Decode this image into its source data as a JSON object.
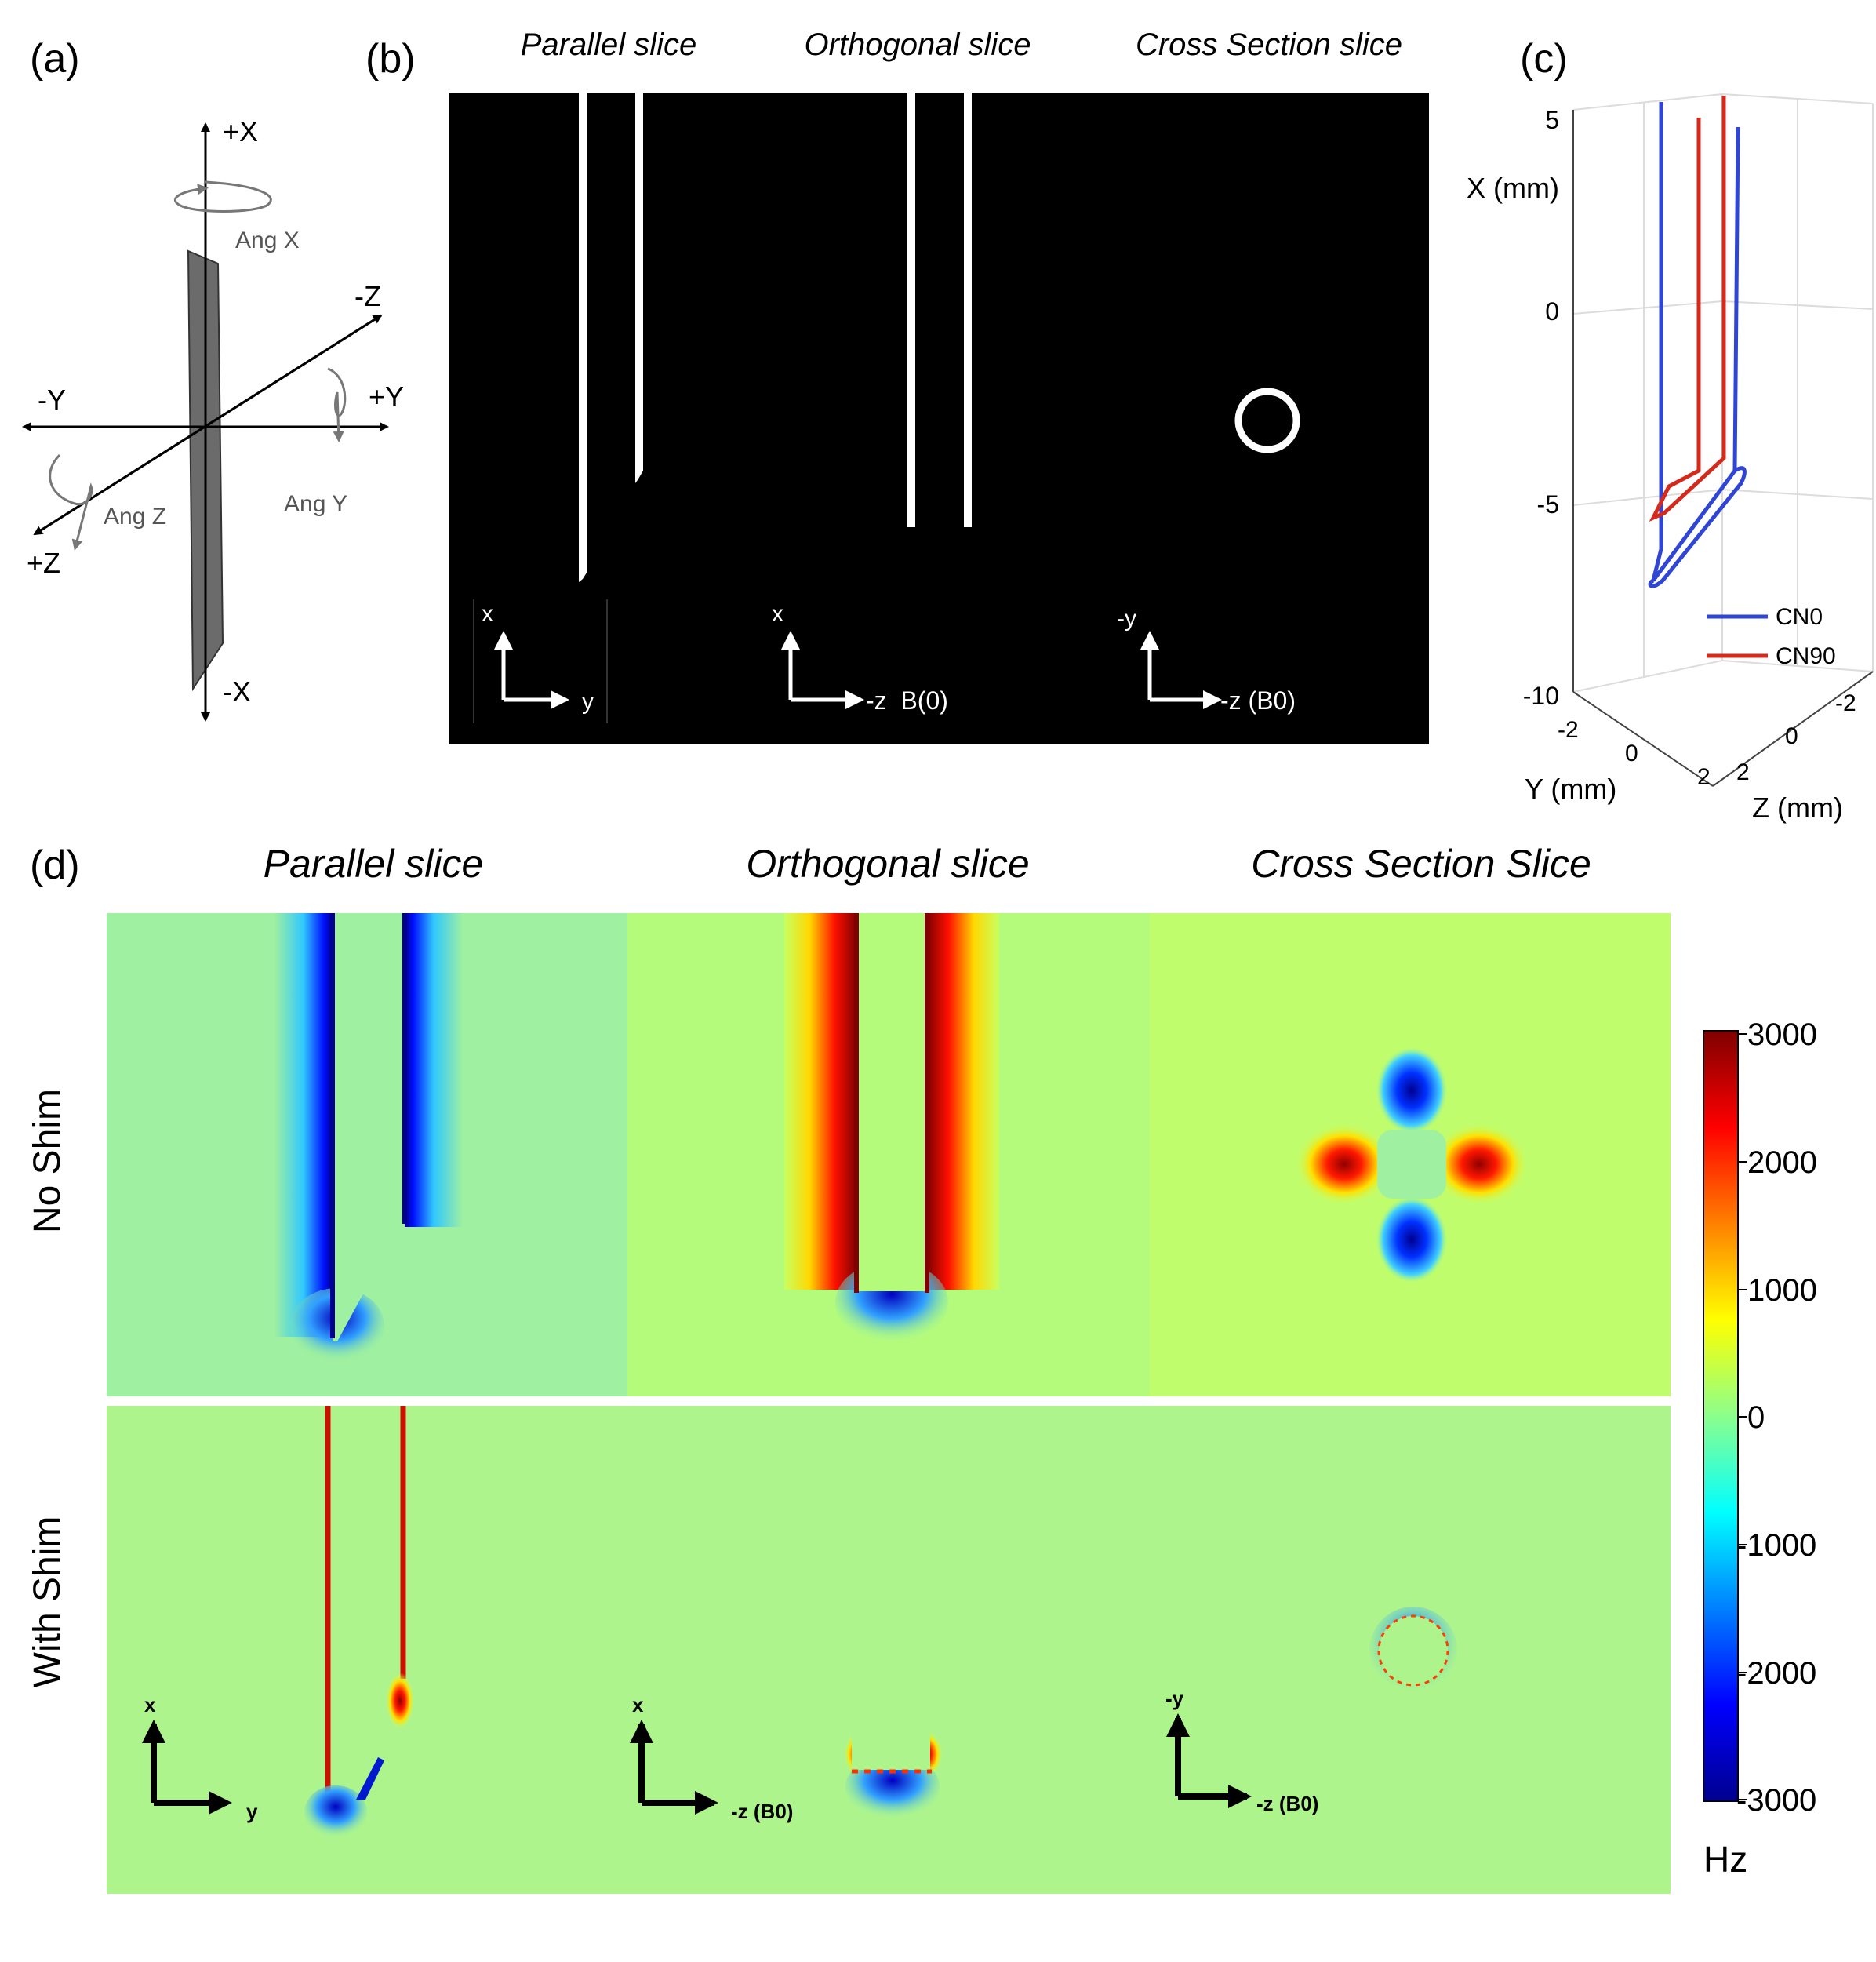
{
  "panel_a": {
    "label": "(a)",
    "axes": {
      "plus_x": "+X",
      "minus_x": "-X",
      "plus_y": "+Y",
      "minus_y": "-Y",
      "plus_z": "+Z",
      "minus_z": "-Z"
    },
    "rotations": {
      "ang_x": "Ang X",
      "ang_y": "Ang Y",
      "ang_z": "Ang Z"
    }
  },
  "panel_b": {
    "label": "(b)",
    "titles": [
      "Parallel slice",
      "Orthogonal slice",
      "Cross Section slice"
    ],
    "axes_parallel": {
      "up": "x",
      "right": "y"
    },
    "axes_orthogonal": {
      "up": "x",
      "right": "-z  B(0)"
    },
    "axes_cross": {
      "up": "-y",
      "right": "-z (B0)"
    }
  },
  "panel_c": {
    "label": "(c)",
    "x_axis_label": "X (mm)",
    "y_axis_label": "Y (mm)",
    "z_axis_label": "Z (mm)",
    "x_ticks": [
      "5",
      "0",
      "-5",
      "-10"
    ],
    "y_ticks": [
      "-2",
      "0",
      "2"
    ],
    "z_ticks": [
      "-2",
      "0",
      "2"
    ],
    "legend": [
      {
        "name": "CN0",
        "color": "#2f45d6"
      },
      {
        "name": "CN90",
        "color": "#d42a1c"
      }
    ]
  },
  "panel_d": {
    "label": "(d)",
    "titles": [
      "Parallel slice",
      "Orthogonal slice",
      "Cross Section Slice"
    ],
    "rows": [
      "No Shim",
      "With Shim"
    ],
    "axes_parallel": {
      "up": "x",
      "right": "y"
    },
    "axes_orthogonal": {
      "up": "x",
      "right": "-z (B0)"
    },
    "axes_cross": {
      "up": "-y",
      "right": "-z (B0)"
    },
    "colorbar": {
      "ticks": [
        "3000",
        "2000",
        "1000",
        "0",
        "-1000",
        "-2000",
        "-3000"
      ],
      "unit": "Hz",
      "range": [
        -3000,
        3000
      ]
    }
  }
}
